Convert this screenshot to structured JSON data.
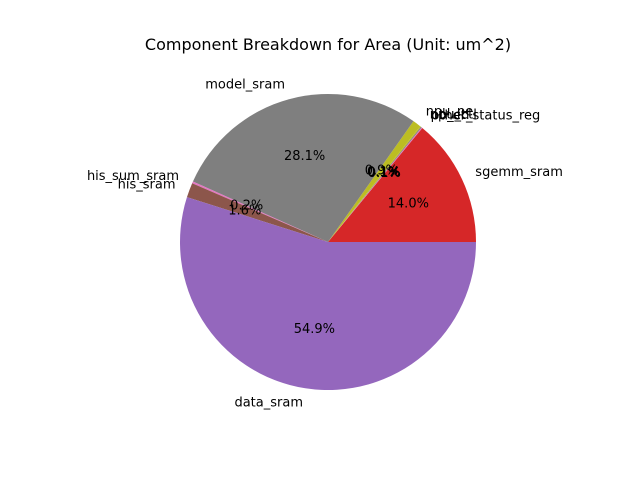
{
  "chart_data": {
    "type": "pie",
    "title": "Component Breakdown for Area (Unit: um^2)",
    "start_angle_deg": 0,
    "direction": "counterclockwise",
    "slices": [
      {
        "label": "sgemm_sram",
        "value": 14.0,
        "pct_label": "14.0%",
        "color": "#d62728"
      },
      {
        "label": "other_status_reg",
        "value": 0.1,
        "pct_label": "0.1%",
        "color": "#e377c2"
      },
      {
        "label": "pb_ctl",
        "value": 0.1,
        "pct_label": "0.1%",
        "color": "#7f7f7f"
      },
      {
        "label": "npu_ctl",
        "value": 0.1,
        "pct_label": "0.1%",
        "color": "#bcbd22"
      },
      {
        "label": "npu_pe",
        "value": 0.9,
        "pct_label": "0.9%",
        "color": "#bcbd22"
      },
      {
        "label": "model_sram",
        "value": 28.1,
        "pct_label": "28.1%",
        "color": "#7f7f7f"
      },
      {
        "label": "his_sum_sram",
        "value": 0.2,
        "pct_label": "0.2%",
        "color": "#e377c2"
      },
      {
        "label": "his_sram",
        "value": 1.6,
        "pct_label": "1.6%",
        "color": "#8c564b"
      },
      {
        "label": "data_sram",
        "value": 54.9,
        "pct_label": "54.9%",
        "color": "#9467bd"
      }
    ]
  }
}
